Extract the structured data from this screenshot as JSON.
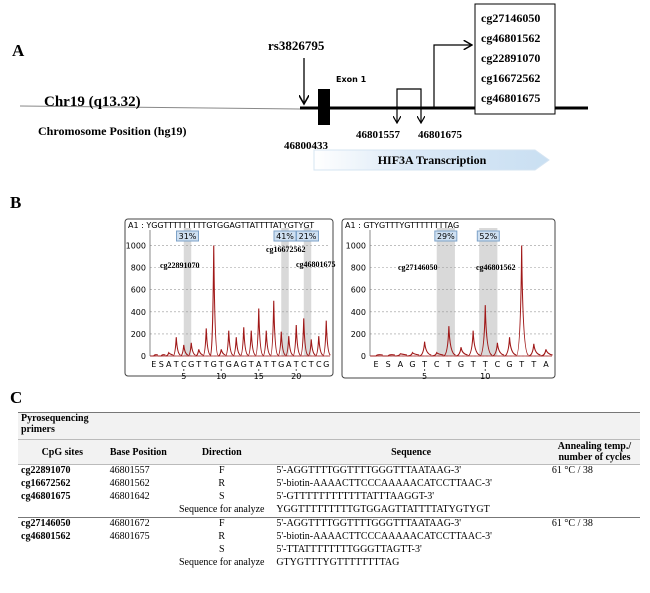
{
  "panel_a": {
    "label": "A",
    "chromosome": "Chr19 (q13.32)",
    "position_label": "Chromosome Position (hg19)",
    "snp": "rs3826795",
    "exon": "Exon 1",
    "positions": [
      "46800433",
      "46801557",
      "46801675"
    ],
    "probes": [
      "cg27146050",
      "cg46801562",
      "cg22891070",
      "cg16672562",
      "cg46801675"
    ],
    "transcription": "HIF3A Transcription"
  },
  "panel_b": {
    "label": "B",
    "pyrograms": [
      {
        "type": "pyrogram",
        "sequence": "A1 : YGGTTTTTTTTTGTGGAGTTATTTTATYGTYGT",
        "dispensation": [
          "E",
          "S",
          "A",
          "T",
          "C",
          "G",
          "T",
          "T",
          "G",
          "T",
          "G",
          "A",
          "G",
          "T",
          "A",
          "T",
          "T",
          "G",
          "A",
          "T",
          "C",
          "T",
          "C",
          "G"
        ],
        "values": [
          0,
          0,
          30,
          170,
          100,
          120,
          60,
          250,
          1000,
          60,
          230,
          170,
          260,
          230,
          430,
          230,
          500,
          220,
          180,
          280,
          340,
          150,
          180,
          320
        ],
        "color": "#a01818",
        "ylim": [
          0,
          1050
        ],
        "yticks": [
          0,
          200,
          400,
          600,
          800,
          1000
        ],
        "xticks": [
          5,
          10,
          15,
          20
        ],
        "methylation": [
          31,
          41,
          21
        ],
        "methylation_labels": [
          "31%",
          "41%",
          "21%"
        ],
        "cpg_labels": [
          "cg22891070",
          "cg16672562",
          "cg46801675"
        ]
      },
      {
        "type": "pyrogram",
        "sequence": "A1 : GTYGTTTYGTTTTTTTTAG",
        "dispensation": [
          "E",
          "S",
          "A",
          "G",
          "T",
          "C",
          "T",
          "G",
          "T",
          "T",
          "C",
          "G",
          "T",
          "T",
          "A"
        ],
        "values": [
          0,
          0,
          20,
          30,
          130,
          30,
          270,
          80,
          230,
          460,
          120,
          170,
          1000,
          110,
          60
        ],
        "color": "#a01818",
        "ylim": [
          0,
          1050
        ],
        "yticks": [
          0,
          200,
          400,
          600,
          800,
          1000
        ],
        "xticks": [
          5,
          10
        ],
        "methylation": [
          29,
          52
        ],
        "methylation_labels": [
          "29%",
          "52%"
        ],
        "cpg_labels": [
          "cg27146050",
          "cg46801562"
        ]
      }
    ]
  },
  "panel_c": {
    "label": "C",
    "title": "Pyrosequencing primers",
    "headers": [
      "CpG sites",
      "Base Position",
      "Direction",
      "Sequence",
      "Annealing temp./ number of cycles"
    ],
    "groups": [
      {
        "rows": [
          {
            "cpg": "cg22891070",
            "position": "46801557",
            "direction": "F",
            "sequence": "5'-AGGTTTTGGTTTTGGGTTTAATAAG-3'",
            "annealing": "61 °C / 38"
          },
          {
            "cpg": "cg16672562",
            "position": "46801562",
            "direction": "R",
            "sequence": "5'-biotin-AAAACTTCCCAAAAACATCCTTAAC-3'"
          },
          {
            "cpg": "cg46801675",
            "position": "46801642",
            "direction": "S",
            "sequence": "5'-GTTTTTTTTTTTTATTTAAGGT-3'"
          },
          {
            "direction": "Sequence for analyze",
            "sequence": "YGGTTTTTTTTTGTGGAGTTATTTTATYGTYGT"
          }
        ]
      },
      {
        "rows": [
          {
            "cpg": "cg27146050",
            "position": "46801672",
            "direction": "F",
            "sequence": "5'-AGGTTTTGGTTTTGGGTTTAATAAG-3'",
            "annealing": "61 °C / 38"
          },
          {
            "cpg": "cg46801562",
            "position": "46801675",
            "direction": "R",
            "sequence": "5'-biotin-AAAACTTCCCAAAAACATCCTTAAC-3'"
          },
          {
            "direction": "S",
            "sequence": "5'-TTATTTTTTTTGGGTTAGTT-3'"
          },
          {
            "direction": "Sequence for analyze",
            "sequence": "GTYGTTTYGTTTTTTTTAG"
          }
        ]
      }
    ]
  }
}
